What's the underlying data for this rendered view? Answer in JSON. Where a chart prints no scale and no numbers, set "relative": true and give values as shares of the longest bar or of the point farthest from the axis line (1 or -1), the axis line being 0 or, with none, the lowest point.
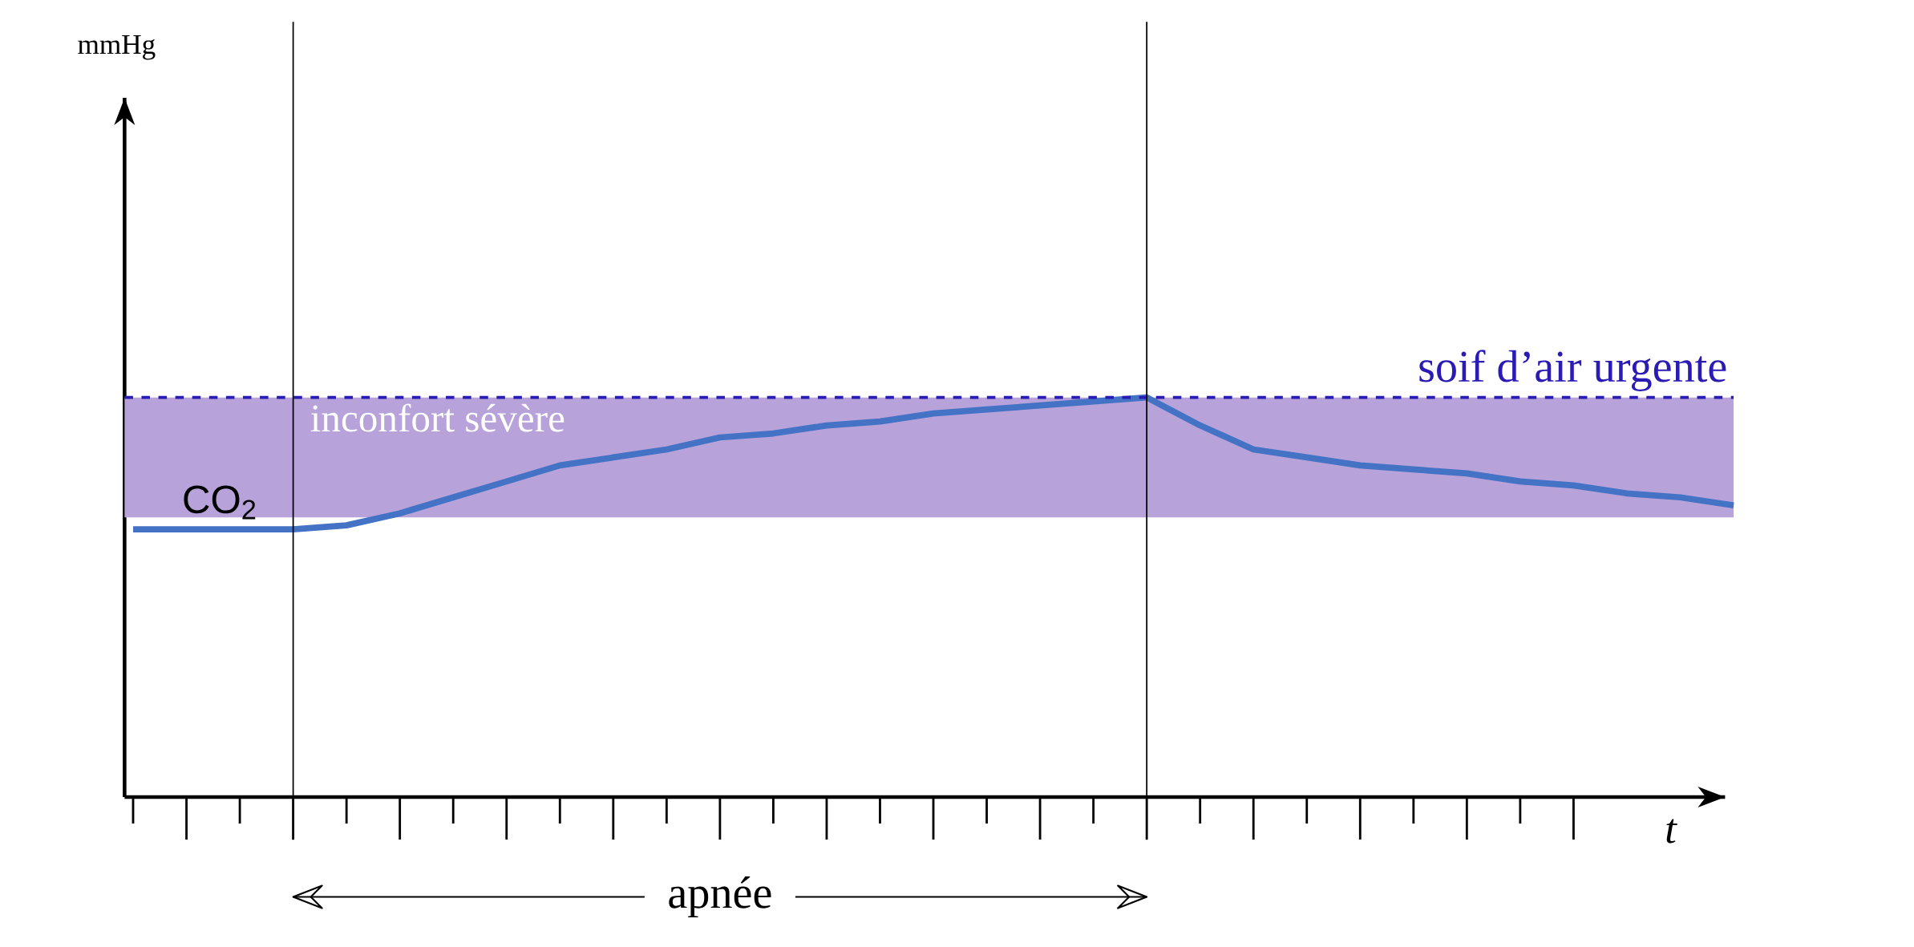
{
  "chart_data": {
    "type": "line",
    "relative": true,
    "xlabel": "t",
    "marker": "none",
    "categories": [
      null,
      null,
      null,
      null,
      null,
      null,
      null,
      null,
      null,
      null,
      null,
      null,
      null,
      null,
      null,
      null,
      null,
      null,
      null,
      null,
      null,
      null,
      null,
      null,
      null,
      null,
      null,
      null,
      null,
      null,
      null
    ],
    "series": [
      {
        "name": "CO$_{2}$",
        "color": "#4472c4",
        "values": [
          0.67,
          0.67,
          0.67,
          0.67,
          0.68,
          0.71,
          0.75,
          0.79,
          0.83,
          0.85,
          0.87,
          0.9,
          0.91,
          0.93,
          0.94,
          0.96,
          0.97,
          0.98,
          0.99,
          1,
          0.93,
          0.87,
          0.85,
          0.83,
          0.82,
          0.81,
          0.79,
          0.78,
          0.76,
          0.75,
          0.73
        ]
      }
    ],
    "ref_lines": [
      {
        "axis": "y",
        "value": 1,
        "label": "soif d’air urgente",
        "color": "#2a1bb5",
        "line_style": "dashed"
      }
    ],
    "bands": [
      {
        "axis": "y",
        "from": 0.7,
        "to": 1,
        "label": "inconfort sévère",
        "color": "#b7a2d9"
      }
    ],
    "annotations": [
      "apnée",
      "mmHg"
    ]
  }
}
